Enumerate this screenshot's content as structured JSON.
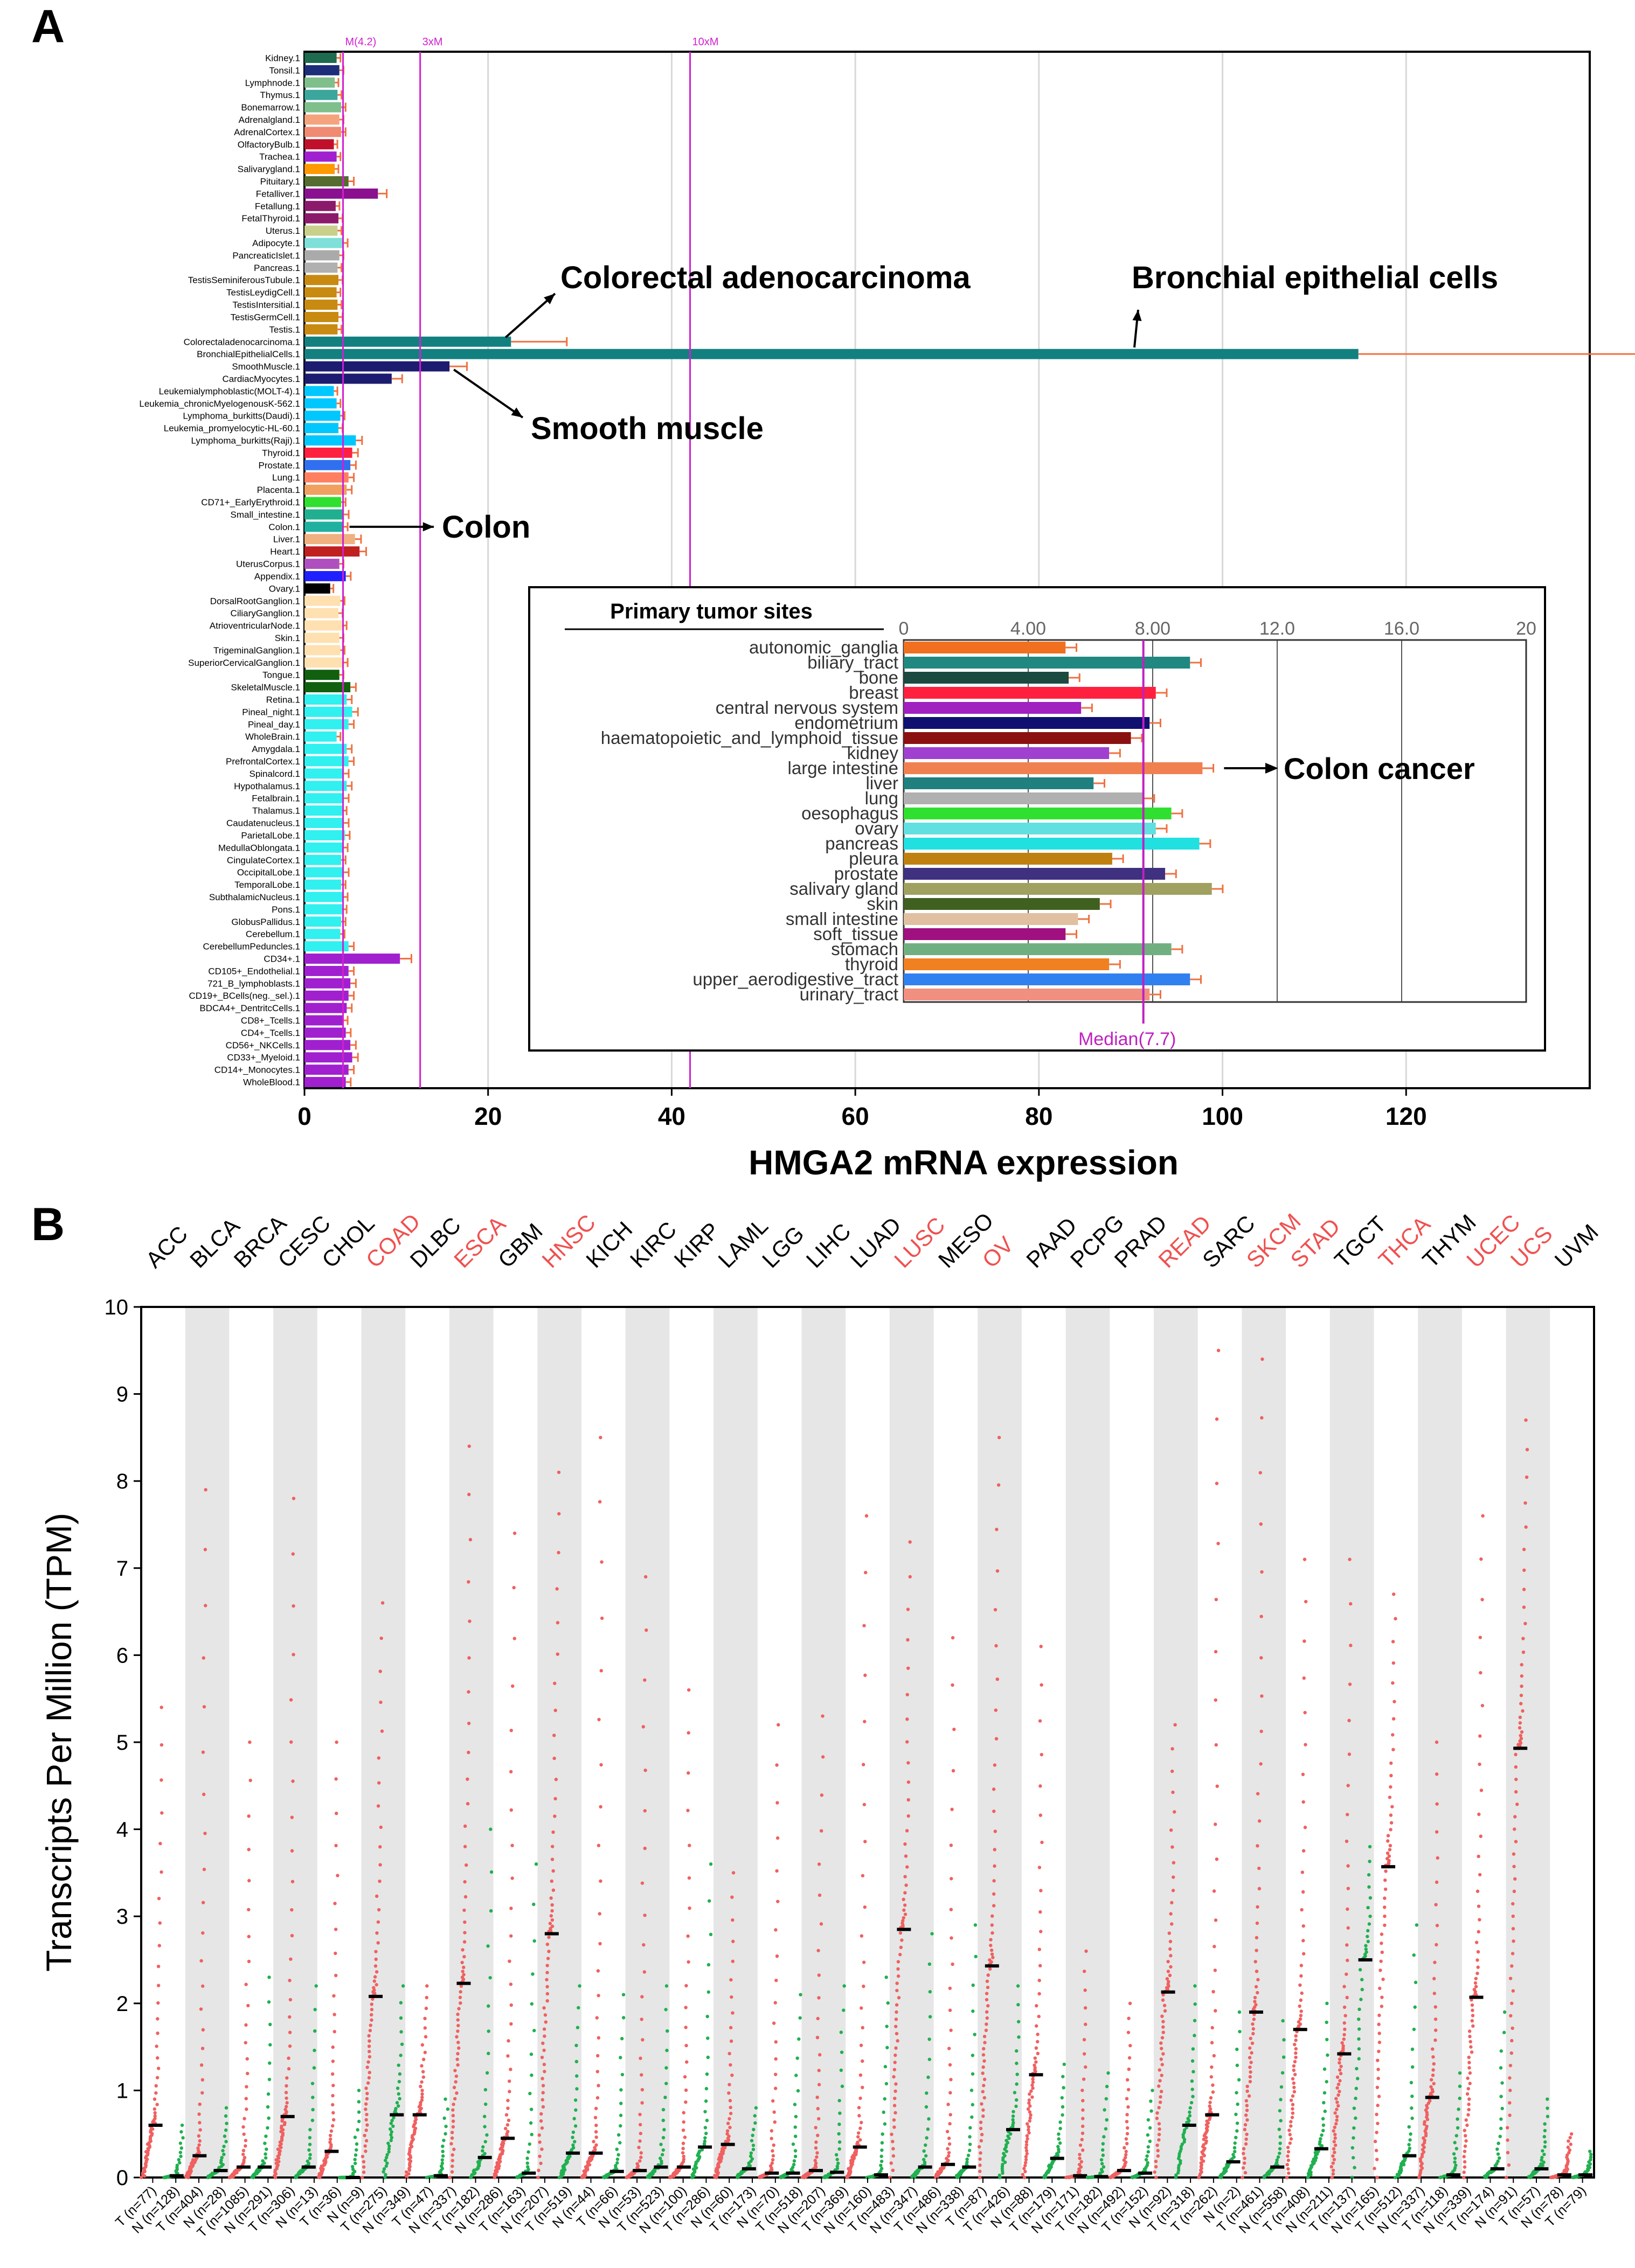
{
  "panel_a": {
    "letter": "A"
  },
  "panel_b": {
    "letter": "B"
  },
  "chart_data": [
    {
      "type": "bar",
      "orientation": "horizontal",
      "title": "",
      "xlabel": "HMGA2 mRNA expression",
      "ylabel": "",
      "xlim": [
        0,
        140
      ],
      "xticks": [
        0,
        20,
        40,
        60,
        80,
        100,
        120
      ],
      "reference_lines": [
        {
          "label": "M(4.2)",
          "value": 4.2
        },
        {
          "label": "3xM",
          "value": 12.6
        },
        {
          "label": "10xM",
          "value": 42
        }
      ],
      "categories": [
        "Kidney.1",
        "Tonsil.1",
        "Lymphnode.1",
        "Thymus.1",
        "Bonemarrow.1",
        "Adrenalgland.1",
        "AdrenalCortex.1",
        "OlfactoryBulb.1",
        "Trachea.1",
        "Salivarygland.1",
        "Pituitary.1",
        "Fetalliver.1",
        "Fetallung.1",
        "FetalThyroid.1",
        "Uterus.1",
        "Adipocyte.1",
        "PancreaticIslet.1",
        "Pancreas.1",
        "TestisSeminiferousTubule.1",
        "TestisLeydigCell.1",
        "TestisIntersitial.1",
        "TestisGermCell.1",
        "Testis.1",
        "Colorectaladenocarcinoma.1",
        "BronchialEpithelialCells.1",
        "SmoothMuscle.1",
        "CardiacMyocytes.1",
        "Leukemialymphoblastic(MOLT-4).1",
        "Leukemia_chronicMyelogenousK-562.1",
        "Lymphoma_burkitts(Daudi).1",
        "Leukemia_promyelocytic-HL-60.1",
        "Lymphoma_burkitts(Raji).1",
        "Thyroid.1",
        "Prostate.1",
        "Lung.1",
        "Placenta.1",
        "CD71+_EarlyErythroid.1",
        "Small_intestine.1",
        "Colon.1",
        "Liver.1",
        "Heart.1",
        "UterusCorpus.1",
        "Appendix.1",
        "Ovary.1",
        "DorsalRootGanglion.1",
        "CiliaryGanglion.1",
        "AtrioventricularNode.1",
        "Skin.1",
        "TrigeminalGanglion.1",
        "SuperiorCervicalGanglion.1",
        "Tongue.1",
        "SkeletalMuscle.1",
        "Retina.1",
        "Pineal_night.1",
        "Pineal_day.1",
        "WholeBrain.1",
        "Amygdala.1",
        "PrefrontalCortex.1",
        "Spinalcord.1",
        "Hypothalamus.1",
        "Fetalbrain.1",
        "Thalamus.1",
        "Caudatenucleus.1",
        "ParietalLobe.1",
        "MedullaOblongata.1",
        "CingulateCortex.1",
        "OccipitalLobe.1",
        "TemporalLobe.1",
        "SubthalamicNucleus.1",
        "Pons.1",
        "GlobusPallidus.1",
        "Cerebellum.1",
        "CerebellumPeduncles.1",
        "CD34+.1",
        "CD105+_Endothelial.1",
        "721_B_lymphoblasts.1",
        "CD19+_BCells(neg._sel.).1",
        "BDCA4+_DentritcCells.1",
        "CD8+_Tcells.1",
        "CD4+_Tcells.1",
        "CD56+_NKCells.1",
        "CD33+_Myeloid.1",
        "CD14+_Monocytes.1",
        "WholeBlood.1"
      ],
      "values": [
        3.5,
        3.8,
        3.3,
        3.6,
        4.0,
        3.8,
        4.0,
        3.2,
        3.5,
        3.3,
        4.8,
        8.0,
        3.4,
        3.7,
        3.6,
        4.2,
        3.8,
        3.6,
        3.7,
        3.5,
        3.6,
        3.7,
        3.6,
        22.5,
        114.8,
        15.8,
        9.5,
        3.2,
        3.5,
        3.9,
        3.7,
        5.6,
        5.2,
        5.0,
        4.8,
        4.6,
        4.0,
        4.3,
        4.2,
        5.5,
        6.0,
        3.8,
        4.5,
        2.8,
        3.9,
        3.7,
        4.1,
        3.8,
        3.9,
        4.2,
        3.8,
        5.0,
        4.6,
        5.2,
        4.8,
        3.5,
        4.6,
        4.8,
        4.3,
        4.6,
        4.3,
        4.1,
        4.3,
        4.4,
        4.2,
        4.0,
        4.3,
        4.0,
        4.2,
        4.1,
        4.0,
        3.9,
        4.8,
        10.4,
        4.8,
        5.0,
        4.8,
        4.6,
        4.2,
        4.5,
        5.0,
        5.2,
        4.8,
        4.5
      ],
      "colors": [
        "#1e6b4f",
        "#1c2d7a",
        "#7fbf8c",
        "#3aa69c",
        "#7fbf8c",
        "#f4a37d",
        "#f08a73",
        "#c0102a",
        "#a020d0",
        "#ff9900",
        "#556b2f",
        "#8b1090",
        "#8b1a6b",
        "#8b1a6b",
        "#c8d08c",
        "#7ee0d8",
        "#aaaaaa",
        "#b0b0b0",
        "#c88a10",
        "#c88a10",
        "#c88a10",
        "#c88a10",
        "#c88a10",
        "#138080",
        "#138080",
        "#1c1c70",
        "#1c1c70",
        "#00c8ff",
        "#00c8ff",
        "#00c8ff",
        "#00c8ff",
        "#00c8ff",
        "#ff2040",
        "#3070f0",
        "#ff8060",
        "#f0a060",
        "#30e030",
        "#20b090",
        "#20b0a0",
        "#f0b080",
        "#c02020",
        "#b050c0",
        "#2020ff",
        "#000000",
        "#ffe0b0",
        "#ffe0b0",
        "#ffe0b0",
        "#ffe0b0",
        "#ffe0b0",
        "#ffe0b0",
        "#106010",
        "#106010",
        "#30f0f0",
        "#30f0f0",
        "#30f0f0",
        "#30f0f0",
        "#30f0f0",
        "#30f0f0",
        "#30f0f0",
        "#30f0f0",
        "#30f0f0",
        "#30f0f0",
        "#30f0f0",
        "#30f0f0",
        "#30f0f0",
        "#30f0f0",
        "#30f0f0",
        "#30f0f0",
        "#30f0f0",
        "#30f0f0",
        "#30f0f0",
        "#30f0f0",
        "#30f0f0",
        "#a020d0",
        "#a020d0",
        "#a020d0",
        "#a020d0",
        "#a020d0",
        "#a020d0",
        "#a020d0",
        "#a020d0",
        "#a020d0",
        "#a020d0",
        "#a020d0"
      ],
      "annotations": [
        "Colorectal adenocarcinoma",
        "Bronchial epithelial cells",
        "Smooth muscle",
        "Colon"
      ]
    },
    {
      "type": "bar",
      "orientation": "horizontal",
      "title": "Primary tumor sites",
      "xlim": [
        0,
        20
      ],
      "xticks": [
        "0",
        "4.00",
        "8.00",
        "12.0",
        "16.0",
        "20"
      ],
      "reference_lines": [
        {
          "label": "Median(7.7)",
          "value": 7.7
        }
      ],
      "categories": [
        "autonomic_ganglia",
        "biliary_tract",
        "bone",
        "breast",
        "central nervous system",
        "endometrium",
        "haematopoietic_and_lymphoid_tissue",
        "kidney",
        "large intestine",
        "liver",
        "lung",
        "oesophagus",
        "ovary",
        "pancreas",
        "pleura",
        "prostate",
        "salivary gland",
        "skin",
        "small intestine",
        "soft_tissue",
        "stomach",
        "thyroid",
        "upper_aerodigestive_tract",
        "urinary_tract"
      ],
      "values": [
        5.2,
        9.2,
        5.3,
        8.1,
        5.7,
        7.9,
        7.3,
        6.6,
        9.6,
        6.1,
        7.7,
        8.6,
        8.1,
        9.5,
        6.7,
        8.4,
        9.9,
        6.3,
        5.6,
        5.2,
        8.6,
        6.6,
        9.2,
        7.9
      ],
      "colors": [
        "#f07020",
        "#208880",
        "#1a4a40",
        "#ff2040",
        "#a020c0",
        "#101070",
        "#8b1010",
        "#a040d0",
        "#f08050",
        "#208080",
        "#b0b0b0",
        "#30e030",
        "#60e0e0",
        "#20e0e0",
        "#c08010",
        "#403080",
        "#a0a060",
        "#406020",
        "#e0c0a0",
        "#a01080",
        "#70b080",
        "#f08020",
        "#3080f0",
        "#f09080"
      ],
      "annotations": [
        "Colon cancer"
      ]
    },
    {
      "type": "scatter",
      "title": "",
      "xlabel": "",
      "ylabel": "Transcripts Per Million (TPM)",
      "ylim": [
        0,
        10
      ],
      "yticks": [
        0,
        1,
        2,
        3,
        4,
        5,
        6,
        7,
        8,
        9,
        10
      ],
      "cancer_types": [
        "ACC",
        "BLCA",
        "BRCA",
        "CESC",
        "CHOL",
        "COAD",
        "DLBC",
        "ESCA",
        "GBM",
        "HNSC",
        "KICH",
        "KIRC",
        "KIRP",
        "LAML",
        "LGG",
        "LIHC",
        "LUAD",
        "LUSC",
        "MESO",
        "OV",
        "PAAD",
        "PCPG",
        "PRAD",
        "READ",
        "SARC",
        "SKCM",
        "STAD",
        "TGCT",
        "THCA",
        "THYM",
        "UCEC",
        "UCS",
        "UVM"
      ],
      "highlighted": [
        "COAD",
        "ESCA",
        "HNSC",
        "LUSC",
        "OV",
        "READ",
        "SKCM",
        "STAD",
        "THCA",
        "UCEC",
        "UCS"
      ],
      "x_tick_labels": [
        "T (n=77)",
        "N (n=128)",
        "T (n=404)",
        "N (n=28)",
        "T (n=1085)",
        "N (n=291)",
        "T (n=306)",
        "N (n=13)",
        "T (n=36)",
        "N (n=9)",
        "T (n=275)",
        "N (n=349)",
        "T (n=47)",
        "N (n=337)",
        "T (n=182)",
        "N (n=286)",
        "T (n=163)",
        "N (n=207)",
        "T (n=519)",
        "N (n=44)",
        "T (n=66)",
        "N (n=53)",
        "T (n=523)",
        "N (n=100)",
        "T (n=286)",
        "N (n=60)",
        "T (n=173)",
        "N (n=70)",
        "T (n=518)",
        "N (n=207)",
        "T (n=369)",
        "N (n=160)",
        "T (n=483)",
        "N (n=347)",
        "T (n=486)",
        "N (n=338)",
        "T (n=87)",
        "T (n=426)",
        "N (n=88)",
        "T (n=179)",
        "N (n=171)",
        "T (n=182)",
        "N (n=492)",
        "T (n=152)",
        "N (n=92)",
        "T (n=318)",
        "T (n=262)",
        "N (n=2)",
        "T (n=461)",
        "N (n=558)",
        "T (n=408)",
        "N (n=211)",
        "T (n=137)",
        "N (n=165)",
        "T (n=512)",
        "N (n=337)",
        "T (n=118)",
        "N (n=339)",
        "T (n=174)",
        "N (n=91)",
        "T (n=57)",
        "N (n=78)",
        "T (n=79)"
      ],
      "tumor_medians": [
        0.6,
        0.25,
        0.12,
        0.7,
        0.3,
        2.08,
        0.72,
        2.23,
        0.45,
        2.8,
        0.28,
        0.08,
        0.12,
        0.38,
        0.05,
        0.08,
        0.35,
        2.85,
        0.15,
        2.43,
        1.18,
        0.02,
        0.08,
        2.13,
        0.72,
        1.9,
        1.7,
        1.42,
        3.57,
        0.92,
        2.07,
        4.93,
        0.03
      ],
      "normal_medians": [
        0.02,
        0.08,
        0.12,
        0.12,
        0.0,
        0.72,
        0.02,
        0.23,
        0.05,
        0.28,
        0.07,
        0.12,
        0.35,
        0.1,
        0.05,
        0.06,
        0.03,
        0.12,
        0.12,
        0.55,
        0.22,
        0.01,
        0.05,
        0.6,
        0.18,
        0.12,
        0.33,
        2.5,
        0.25,
        0.03,
        0.1,
        0.1,
        0.03
      ],
      "tumor_max": [
        5.4,
        7.9,
        5.0,
        7.8,
        5.0,
        6.6,
        2.2,
        8.4,
        7.4,
        8.1,
        8.5,
        6.9,
        5.6,
        3.5,
        5.2,
        5.3,
        7.6,
        7.3,
        6.2,
        8.5,
        6.1,
        2.6,
        2.0,
        5.2,
        9.5,
        9.4,
        7.1,
        7.1,
        6.7,
        5.0,
        7.6,
        8.7,
        0.5
      ],
      "normal_max": [
        0.6,
        0.8,
        2.3,
        2.2,
        1.0,
        2.2,
        0.9,
        4.0,
        3.6,
        2.2,
        2.1,
        2.2,
        3.6,
        0.8,
        2.1,
        2.2,
        2.3,
        2.8,
        2.9,
        2.2,
        1.3,
        1.2,
        1.0,
        2.2,
        1.9,
        1.8,
        2.0,
        3.8,
        2.9,
        1.2,
        1.9,
        0.9,
        0.3
      ]
    }
  ]
}
